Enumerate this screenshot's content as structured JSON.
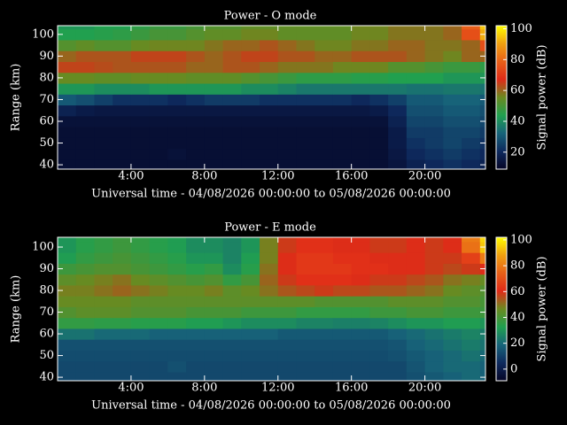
{
  "chart_data": [
    {
      "type": "heatmap",
      "title": "Power - O mode",
      "xlabel": "Universal time - 04/08/2026 00:00:00 to 05/08/2026 00:00:00",
      "ylabel": "Range (km)",
      "colorbar_label": "Signal power (dB)",
      "x": [
        0,
        1,
        2,
        3,
        4,
        5,
        6,
        7,
        8,
        9,
        10,
        11,
        12,
        13,
        14,
        15,
        16,
        17,
        18,
        19,
        20,
        21,
        22,
        23
      ],
      "y": [
        40,
        45,
        50,
        55,
        60,
        65,
        70,
        75,
        80,
        85,
        90,
        95,
        100,
        105
      ],
      "z": [
        [
          12,
          12,
          12,
          12,
          12,
          12,
          12,
          12,
          12,
          12,
          12,
          12,
          12,
          12,
          12,
          12,
          12,
          12,
          14,
          18,
          20,
          22,
          20,
          18
        ],
        [
          12,
          12,
          12,
          12,
          12,
          12,
          13,
          12,
          12,
          12,
          12,
          12,
          12,
          12,
          12,
          12,
          12,
          12,
          15,
          20,
          22,
          24,
          22,
          20
        ],
        [
          12,
          12,
          12,
          12,
          12,
          12,
          12,
          12,
          12,
          12,
          12,
          12,
          12,
          12,
          12,
          12,
          12,
          12,
          16,
          22,
          24,
          26,
          24,
          22
        ],
        [
          12,
          12,
          12,
          12,
          12,
          12,
          12,
          12,
          12,
          12,
          12,
          12,
          12,
          12,
          12,
          12,
          12,
          12,
          16,
          24,
          24,
          26,
          26,
          24
        ],
        [
          13,
          13,
          13,
          13,
          13,
          13,
          13,
          13,
          13,
          13,
          13,
          13,
          13,
          13,
          13,
          13,
          13,
          13,
          18,
          26,
          26,
          28,
          28,
          26
        ],
        [
          18,
          16,
          15,
          15,
          15,
          15,
          15,
          15,
          15,
          15,
          15,
          15,
          15,
          15,
          15,
          15,
          15,
          16,
          20,
          28,
          28,
          30,
          30,
          28
        ],
        [
          30,
          28,
          25,
          22,
          22,
          22,
          20,
          22,
          24,
          24,
          24,
          22,
          22,
          22,
          22,
          22,
          20,
          22,
          25,
          30,
          30,
          32,
          32,
          30
        ],
        [
          42,
          42,
          40,
          40,
          40,
          42,
          42,
          42,
          42,
          42,
          40,
          40,
          38,
          36,
          36,
          36,
          36,
          36,
          36,
          35,
          35,
          36,
          36,
          35
        ],
        [
          55,
          55,
          54,
          54,
          55,
          55,
          55,
          54,
          54,
          54,
          52,
          50,
          48,
          46,
          46,
          46,
          45,
          45,
          44,
          44,
          44,
          42,
          42,
          42
        ],
        [
          64,
          64,
          63,
          62,
          62,
          62,
          62,
          60,
          60,
          62,
          62,
          60,
          58,
          58,
          58,
          56,
          56,
          56,
          52,
          52,
          50,
          48,
          48,
          46
        ],
        [
          60,
          62,
          62,
          62,
          64,
          64,
          64,
          62,
          60,
          62,
          64,
          64,
          62,
          62,
          60,
          60,
          62,
          62,
          62,
          60,
          58,
          56,
          60,
          60
        ],
        [
          52,
          54,
          52,
          52,
          55,
          56,
          56,
          56,
          58,
          60,
          60,
          62,
          60,
          58,
          56,
          56,
          58,
          58,
          60,
          60,
          58,
          58,
          60,
          75
        ],
        [
          44,
          44,
          45,
          46,
          48,
          50,
          50,
          52,
          54,
          54,
          56,
          56,
          54,
          54,
          54,
          54,
          56,
          56,
          58,
          58,
          58,
          60,
          75,
          92
        ],
        [
          42,
          42,
          44,
          44,
          46,
          48,
          48,
          50,
          52,
          52,
          54,
          54,
          54,
          54,
          54,
          54,
          56,
          56,
          58,
          58,
          58,
          60,
          78,
          95
        ]
      ],
      "xlim": [
        0,
        23.3
      ],
      "ylim": [
        38,
        104
      ],
      "clim": [
        9,
        102
      ],
      "xticks": [
        {
          "value": 4,
          "label": "4:00"
        },
        {
          "value": 8,
          "label": "8:00"
        },
        {
          "value": 12,
          "label": "12:00"
        },
        {
          "value": 16,
          "label": "16:00"
        },
        {
          "value": 20,
          "label": "20:00"
        }
      ],
      "yticks": [
        40,
        50,
        60,
        70,
        80,
        90,
        100
      ],
      "cticks": [
        20,
        40,
        60,
        80,
        100
      ],
      "colorscale": [
        "#050526",
        "#0e2a5e",
        "#17647a",
        "#20a050",
        "#6a8a20",
        "#e02a18",
        "#e86018",
        "#f0a010",
        "#ffff00"
      ]
    },
    {
      "type": "heatmap",
      "title": "Power - E mode",
      "xlabel": "Universal time - 04/08/2026 00:00:00 to 05/08/2026 00:00:00",
      "ylabel": "Range (km)",
      "colorbar_label": "Signal power (dB)",
      "x": [
        0,
        1,
        2,
        3,
        4,
        5,
        6,
        7,
        8,
        9,
        10,
        11,
        12,
        13,
        14,
        15,
        16,
        17,
        18,
        19,
        20,
        21,
        22,
        23
      ],
      "y": [
        40,
        45,
        50,
        55,
        60,
        65,
        70,
        75,
        80,
        85,
        90,
        95,
        100,
        105
      ],
      "z": [
        [
          12,
          12,
          12,
          12,
          12,
          12,
          12,
          12,
          12,
          12,
          12,
          12,
          12,
          12,
          12,
          12,
          12,
          12,
          12,
          14,
          16,
          18,
          20,
          18
        ],
        [
          12,
          12,
          12,
          12,
          12,
          12,
          14,
          12,
          12,
          12,
          12,
          12,
          12,
          12,
          12,
          12,
          12,
          12,
          12,
          15,
          18,
          20,
          20,
          18
        ],
        [
          13,
          13,
          13,
          13,
          13,
          13,
          13,
          13,
          13,
          13,
          13,
          13,
          13,
          13,
          13,
          13,
          13,
          13,
          14,
          16,
          18,
          20,
          22,
          20
        ],
        [
          14,
          14,
          14,
          14,
          14,
          14,
          14,
          14,
          14,
          14,
          14,
          14,
          14,
          14,
          14,
          14,
          14,
          14,
          15,
          18,
          20,
          22,
          24,
          22
        ],
        [
          22,
          22,
          20,
          20,
          20,
          18,
          18,
          18,
          18,
          18,
          18,
          18,
          16,
          16,
          16,
          16,
          16,
          16,
          18,
          20,
          22,
          24,
          26,
          24
        ],
        [
          36,
          36,
          35,
          35,
          34,
          34,
          34,
          32,
          32,
          30,
          28,
          28,
          28,
          26,
          26,
          25,
          25,
          26,
          28,
          30,
          30,
          32,
          32,
          30
        ],
        [
          42,
          44,
          44,
          44,
          42,
          42,
          42,
          40,
          40,
          40,
          38,
          38,
          38,
          36,
          36,
          36,
          36,
          38,
          38,
          40,
          40,
          38,
          38,
          38
        ],
        [
          46,
          46,
          46,
          46,
          44,
          44,
          44,
          44,
          44,
          44,
          44,
          44,
          44,
          44,
          42,
          42,
          42,
          42,
          44,
          44,
          44,
          42,
          42,
          40
        ],
        [
          48,
          48,
          50,
          52,
          50,
          48,
          46,
          46,
          48,
          44,
          46,
          50,
          54,
          56,
          58,
          56,
          56,
          54,
          54,
          52,
          50,
          46,
          44,
          42
        ],
        [
          44,
          46,
          48,
          50,
          46,
          44,
          42,
          40,
          42,
          36,
          40,
          52,
          58,
          62,
          62,
          62,
          60,
          58,
          58,
          56,
          54,
          50,
          48,
          46
        ],
        [
          38,
          40,
          42,
          42,
          40,
          38,
          36,
          34,
          36,
          28,
          34,
          50,
          60,
          64,
          64,
          64,
          62,
          62,
          60,
          60,
          58,
          56,
          58,
          60
        ],
        [
          32,
          36,
          38,
          40,
          38,
          36,
          34,
          30,
          30,
          26,
          32,
          48,
          60,
          64,
          64,
          62,
          62,
          60,
          60,
          60,
          58,
          58,
          66,
          80
        ],
        [
          30,
          34,
          36,
          38,
          36,
          34,
          32,
          28,
          28,
          26,
          30,
          48,
          58,
          62,
          62,
          60,
          60,
          58,
          58,
          60,
          58,
          60,
          78,
          94
        ],
        [
          30,
          34,
          36,
          38,
          36,
          34,
          32,
          28,
          28,
          26,
          30,
          48,
          58,
          62,
          62,
          60,
          60,
          58,
          58,
          60,
          58,
          60,
          80,
          96
        ]
      ],
      "xlim": [
        0,
        23.3
      ],
      "ylim": [
        38.4,
        104.5
      ],
      "clim": [
        -9,
        102
      ],
      "xticks": [
        {
          "value": 4,
          "label": "4:00"
        },
        {
          "value": 8,
          "label": "8:00"
        },
        {
          "value": 12,
          "label": "12:00"
        },
        {
          "value": 16,
          "label": "16:00"
        },
        {
          "value": 20,
          "label": "20:00"
        }
      ],
      "yticks": [
        40,
        50,
        60,
        70,
        80,
        90,
        100
      ],
      "cticks": [
        0,
        20,
        40,
        60,
        80,
        100
      ],
      "colorscale": [
        "#050526",
        "#0e2a5e",
        "#17647a",
        "#20a050",
        "#6a8a20",
        "#e02a18",
        "#e86018",
        "#f0a010",
        "#ffff00"
      ]
    }
  ]
}
